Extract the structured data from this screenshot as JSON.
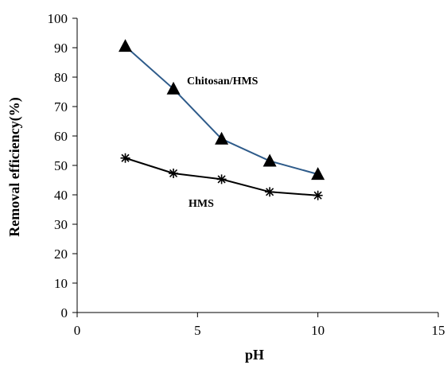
{
  "chart_data": {
    "type": "line",
    "xlabel": "pH",
    "ylabel": "Removal efficiency(%)",
    "xlim": [
      0,
      15
    ],
    "ylim": [
      0,
      100
    ],
    "xticks": [
      0,
      5,
      10,
      15
    ],
    "yticks": [
      0,
      10,
      20,
      30,
      40,
      50,
      60,
      70,
      80,
      90,
      100
    ],
    "grid": false,
    "series": [
      {
        "name": "Chitosan/HMS",
        "marker": "triangle",
        "color": "#2e5b8a",
        "x": [
          2,
          4,
          6,
          8,
          10
        ],
        "y": [
          90.5,
          76,
          59,
          51.5,
          47
        ]
      },
      {
        "name": "HMS",
        "marker": "asterisk",
        "color": "#000000",
        "x": [
          2,
          4,
          6,
          8,
          10
        ],
        "y": [
          52.5,
          47.3,
          45.3,
          41,
          39.8
        ]
      }
    ]
  }
}
